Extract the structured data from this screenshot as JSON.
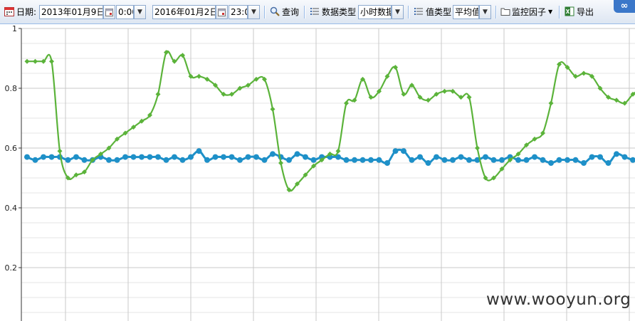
{
  "toolbar": {
    "date_label": "日期:",
    "start_date": "2013年01月9日",
    "start_time": "0:00",
    "end_date": "2016年01月2日",
    "end_time": "23:0",
    "query_label": "查询",
    "data_type_label": "数据类型",
    "data_type_value": "小时数据",
    "value_type_label": "值类型",
    "value_type_value": "平均值",
    "monitor_label": "监控因子",
    "export_label": "导出"
  },
  "corner_badge": "∞",
  "watermark": "www.wooyun.org",
  "chart_data": {
    "type": "line",
    "ylim": [
      0.4,
      1.0
    ],
    "y_ticks": [
      "1",
      "0.8",
      "0.6",
      "0.4",
      "0.2"
    ],
    "grid": true,
    "colors": {
      "series1": "#5bb33a",
      "series2": "#1e90c8"
    },
    "x_count": 76,
    "series": [
      {
        "values": [
          0.89,
          0.89,
          0.89,
          0.89,
          0.59,
          0.5,
          0.51,
          0.52,
          0.56,
          0.58,
          0.6,
          0.63,
          0.65,
          0.67,
          0.69,
          0.71,
          0.78,
          0.92,
          0.89,
          0.91,
          0.84,
          0.84,
          0.83,
          0.81,
          0.78,
          0.78,
          0.8,
          0.81,
          0.83,
          0.83,
          0.73,
          0.55,
          0.46,
          0.48,
          0.51,
          0.54,
          0.56,
          0.58,
          0.59,
          0.75,
          0.76,
          0.83,
          0.77,
          0.79,
          0.84,
          0.87,
          0.78,
          0.81,
          0.77,
          0.76,
          0.78,
          0.79,
          0.79,
          0.77,
          0.77,
          0.6,
          0.5,
          0.5,
          0.53,
          0.56,
          0.58,
          0.61,
          0.63,
          0.65,
          0.75,
          0.88,
          0.87,
          0.84,
          0.85,
          0.84,
          0.8,
          0.77,
          0.76,
          0.75,
          0.78,
          0.8
        ]
      },
      {
        "values": [
          0.57,
          0.56,
          0.57,
          0.57,
          0.57,
          0.56,
          0.57,
          0.56,
          0.56,
          0.57,
          0.56,
          0.56,
          0.57,
          0.57,
          0.57,
          0.57,
          0.57,
          0.56,
          0.57,
          0.56,
          0.57,
          0.59,
          0.56,
          0.57,
          0.57,
          0.57,
          0.56,
          0.57,
          0.57,
          0.56,
          0.58,
          0.57,
          0.56,
          0.58,
          0.57,
          0.56,
          0.57,
          0.57,
          0.57,
          0.56,
          0.56,
          0.56,
          0.56,
          0.56,
          0.55,
          0.59,
          0.59,
          0.56,
          0.57,
          0.55,
          0.57,
          0.56,
          0.56,
          0.57,
          0.56,
          0.56,
          0.57,
          0.56,
          0.56,
          0.57,
          0.56,
          0.56,
          0.57,
          0.56,
          0.55,
          0.56,
          0.56,
          0.56,
          0.55,
          0.57,
          0.57,
          0.55,
          0.58,
          0.57,
          0.56,
          0.55
        ]
      }
    ]
  }
}
